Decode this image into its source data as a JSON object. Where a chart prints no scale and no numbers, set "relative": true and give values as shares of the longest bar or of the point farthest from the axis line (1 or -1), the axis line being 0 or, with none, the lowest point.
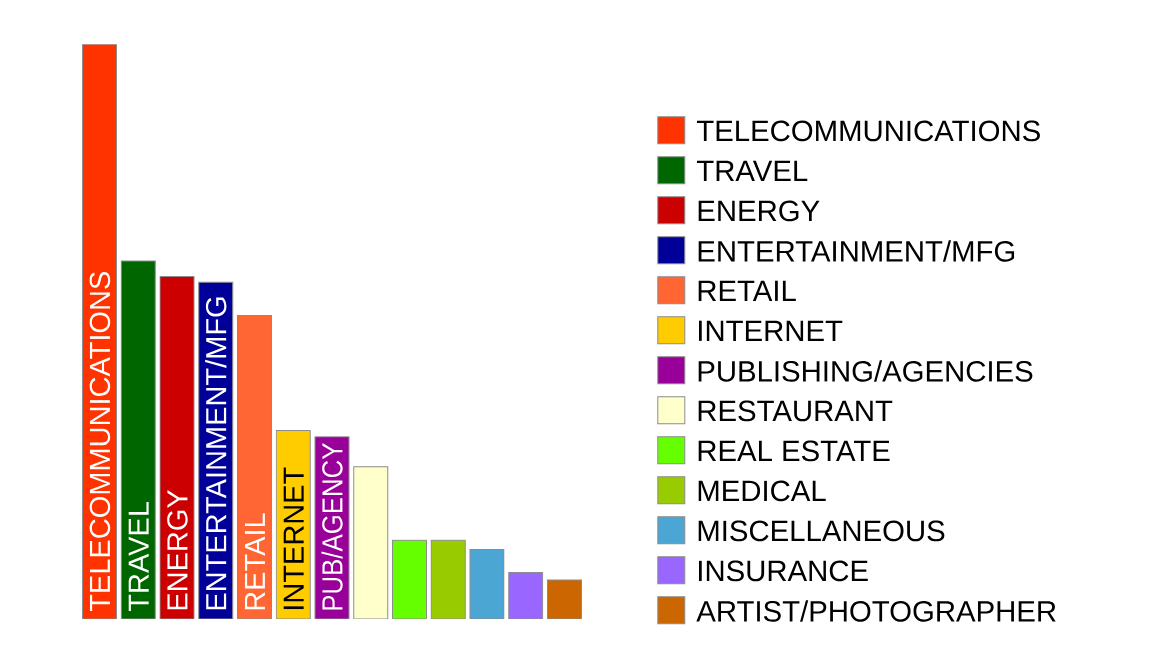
{
  "chart_data": {
    "type": "bar",
    "relative": true,
    "legend": "right",
    "categories": [
      "TELECOMMUNICATIONS",
      "TRAVEL",
      "ENERGY",
      "ENTERTAINMENT/MFG",
      "RETAIL",
      "INTERNET",
      "PUB/AGENCY",
      null,
      null,
      null,
      null,
      null,
      null
    ],
    "series": [
      {
        "name": "TELECOMMUNICATIONS",
        "color": "#ff3300",
        "values": [
          1,
          null,
          null,
          null,
          null,
          null,
          null,
          null,
          null,
          null,
          null,
          null,
          null
        ]
      },
      {
        "name": "TRAVEL",
        "color": "#006600",
        "values": [
          null,
          0.623,
          null,
          null,
          null,
          null,
          null,
          null,
          null,
          null,
          null,
          null,
          null
        ]
      },
      {
        "name": "ENERGY",
        "color": "#cc0000",
        "values": [
          null,
          null,
          0.596,
          null,
          null,
          null,
          null,
          null,
          null,
          null,
          null,
          null,
          null
        ]
      },
      {
        "name": "ENTERTAINMENT/MFG",
        "color": "#000099",
        "values": [
          null,
          null,
          null,
          0.586,
          null,
          null,
          null,
          null,
          null,
          null,
          null,
          null,
          null
        ]
      },
      {
        "name": "RETAIL",
        "color": "#ff6633",
        "values": [
          null,
          null,
          null,
          null,
          0.528,
          null,
          null,
          null,
          null,
          null,
          null,
          null,
          null
        ]
      },
      {
        "name": "INTERNET",
        "color": "#ffcc00",
        "values": [
          null,
          null,
          null,
          null,
          null,
          0.328,
          null,
          null,
          null,
          null,
          null,
          null,
          null
        ]
      },
      {
        "name": "PUBLISHING/AGENCIES",
        "color": "#990099",
        "values": [
          null,
          null,
          null,
          null,
          null,
          null,
          0.317,
          null,
          null,
          null,
          null,
          null,
          null
        ]
      },
      {
        "name": "RESTAURANT",
        "color": "#ffffcc",
        "values": [
          null,
          null,
          null,
          null,
          null,
          null,
          null,
          0.265,
          null,
          null,
          null,
          null,
          null
        ]
      },
      {
        "name": "REAL ESTATE",
        "color": "#66ff00",
        "values": [
          null,
          null,
          null,
          null,
          null,
          null,
          null,
          null,
          0.137,
          null,
          null,
          null,
          null
        ]
      },
      {
        "name": "MEDICAL",
        "color": "#99cc00",
        "values": [
          null,
          null,
          null,
          null,
          null,
          null,
          null,
          null,
          null,
          0.137,
          null,
          null,
          null
        ]
      },
      {
        "name": "MISCELLANEOUS",
        "color": "#4ca6d4",
        "values": [
          null,
          null,
          null,
          null,
          null,
          null,
          null,
          null,
          null,
          null,
          0.121,
          null,
          null
        ]
      },
      {
        "name": "INSURANCE",
        "color": "#9966ff",
        "values": [
          null,
          null,
          null,
          null,
          null,
          null,
          null,
          null,
          null,
          null,
          null,
          0.081,
          null
        ]
      },
      {
        "name": "ARTIST/PHOTOGRAPHER",
        "color": "#cc6600",
        "values": [
          null,
          null,
          null,
          null,
          null,
          null,
          null,
          null,
          null,
          null,
          null,
          null,
          0.068
        ]
      }
    ]
  }
}
